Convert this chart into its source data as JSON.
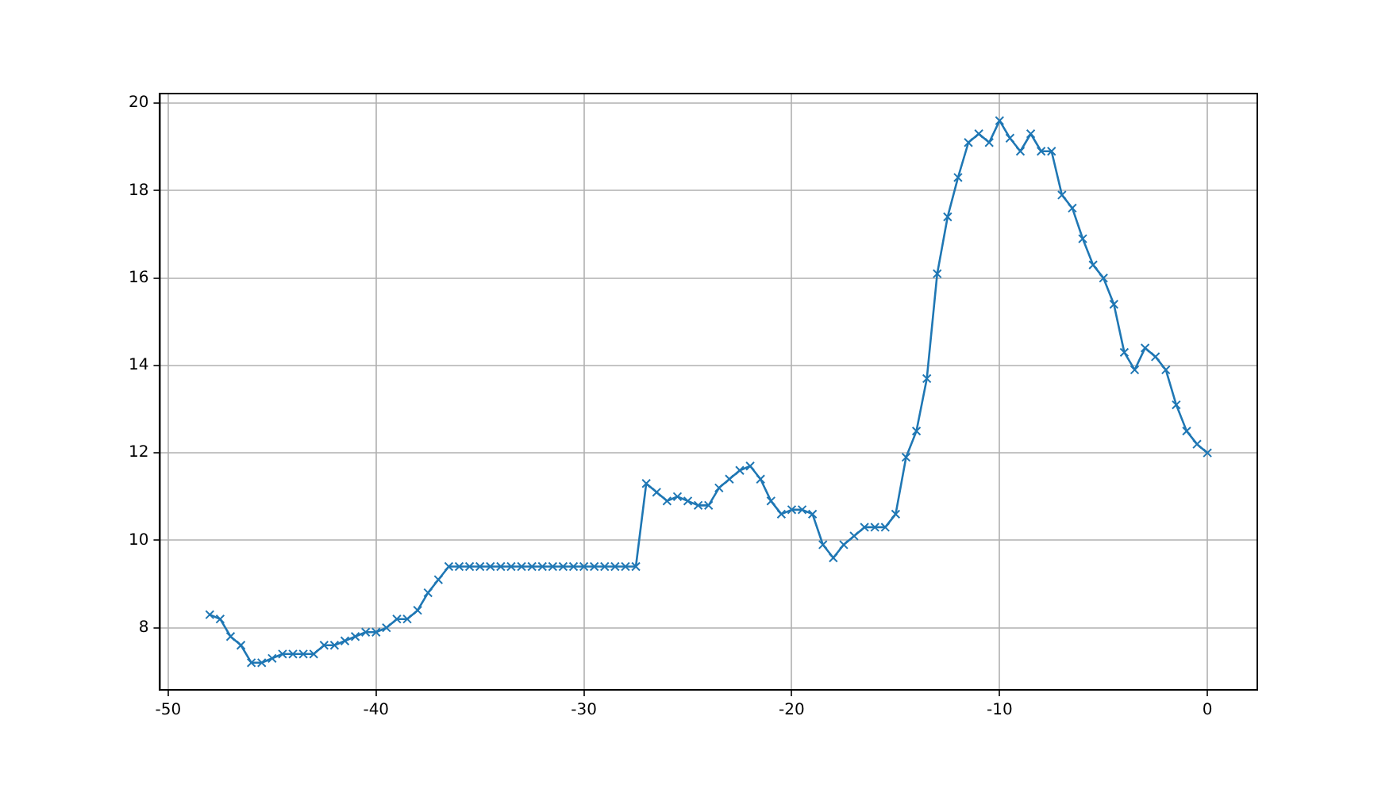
{
  "chart_data": {
    "type": "line",
    "x": [
      -48,
      -47.5,
      -47,
      -46.5,
      -46,
      -45.5,
      -45,
      -44.5,
      -44,
      -43.5,
      -43,
      -42.5,
      -42,
      -41.5,
      -41,
      -40.5,
      -40,
      -39.5,
      -39,
      -38.5,
      -38,
      -37.5,
      -37,
      -36.5,
      -36,
      -35.5,
      -35,
      -34.5,
      -34,
      -33.5,
      -33,
      -32.5,
      -32,
      -31.5,
      -31,
      -30.5,
      -30,
      -29.5,
      -29,
      -28.5,
      -28,
      -27.5,
      -27,
      -26.5,
      -26,
      -25.5,
      -25,
      -24.5,
      -24,
      -23.5,
      -23,
      -22.5,
      -22,
      -21.5,
      -21,
      -20.5,
      -20,
      -19.5,
      -19,
      -18.5,
      -18,
      -17.5,
      -17,
      -16.5,
      -16,
      -15.5,
      -15,
      -14.5,
      -14,
      -13.5,
      -13,
      -12.5,
      -12,
      -11.5,
      -11,
      -10.5,
      -10,
      -9.5,
      -9,
      -8.5,
      -8,
      -7.5,
      -7,
      -6.5,
      -6,
      -5.5,
      -5,
      -4.5,
      -4,
      -3.5,
      -3,
      -2.5,
      -2,
      -1.5,
      -1,
      -0.5,
      0
    ],
    "series": [
      {
        "color": "#1f77b4",
        "values": [
          8.3,
          8.2,
          7.8,
          7.6,
          7.2,
          7.2,
          7.3,
          7.4,
          7.4,
          7.4,
          7.4,
          7.6,
          7.6,
          7.7,
          7.8,
          7.9,
          7.9,
          8.0,
          8.2,
          8.2,
          8.4,
          8.8,
          9.1,
          9.4,
          9.4,
          9.4,
          9.4,
          9.4,
          9.4,
          9.4,
          9.4,
          9.4,
          9.4,
          9.4,
          9.4,
          9.4,
          9.4,
          9.4,
          9.4,
          9.4,
          9.4,
          9.4,
          11.3,
          11.1,
          10.9,
          11.0,
          10.9,
          10.8,
          10.8,
          11.2,
          11.4,
          11.6,
          11.7,
          11.4,
          10.9,
          10.6,
          10.7,
          10.7,
          10.6,
          9.9,
          9.6,
          9.9,
          10.1,
          10.3,
          10.3,
          10.3,
          10.6,
          11.9,
          12.5,
          13.7,
          16.1,
          17.4,
          18.3,
          19.1,
          19.3,
          19.1,
          19.6,
          19.2,
          18.9,
          19.3,
          18.9,
          18.9,
          17.9,
          17.6,
          16.9,
          16.3,
          16.0,
          15.4,
          14.3,
          13.9,
          14.4,
          14.2,
          13.9,
          13.1,
          12.5,
          12.2,
          12.0
        ]
      }
    ],
    "xlim": [
      -50.4,
      2.4
    ],
    "ylim": [
      6.58,
      20.22
    ],
    "xticks": [
      -50,
      -40,
      -30,
      -20,
      -10,
      0
    ],
    "yticks": [
      8,
      10,
      12,
      14,
      16,
      18,
      20
    ],
    "grid": true,
    "legend": false,
    "marker": "cross",
    "line_style": "solid"
  }
}
